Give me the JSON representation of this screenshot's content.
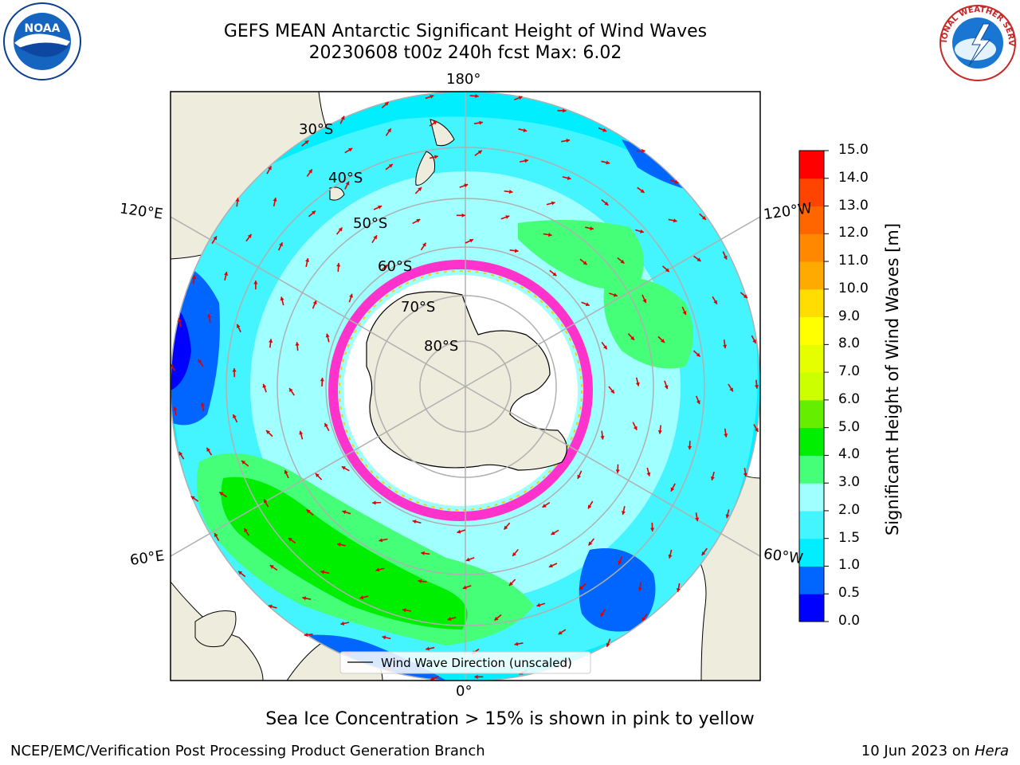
{
  "header": {
    "title_line1": "GEFS MEAN Antarctic Significant Height of Wind Waves",
    "title_line2": "20230608 t00z 240h fcst   Max: 6.02"
  },
  "map": {
    "projection": "south-polar-stereographic",
    "longitude_labels": {
      "top": "180°",
      "bottom": "0°",
      "left_upper": "120°E",
      "right_upper": "120°W",
      "left_lower": "60°E",
      "right_lower": "60°W"
    },
    "latitude_labels": [
      "30°S",
      "40°S",
      "50°S",
      "60°S",
      "70°S",
      "80°S"
    ],
    "legend": "Wind Wave Direction (unscaled)",
    "colors": {
      "land": "#eeecdc",
      "sea_ice_low": "#ff33cc",
      "sea_ice_high": "#ffcc00",
      "arrow": "#e00000"
    }
  },
  "colorbar": {
    "label": "Significant Height of Wind Waves [m]",
    "ticks": [
      "0.0",
      "0.5",
      "1.0",
      "1.5",
      "2.0",
      "3.0",
      "4.0",
      "5.0",
      "6.0",
      "7.0",
      "8.0",
      "9.0",
      "10.0",
      "11.0",
      "12.0",
      "13.0",
      "14.0",
      "15.0"
    ],
    "colors": [
      "#0000ff",
      "#0066ff",
      "#00eeff",
      "#44f4ff",
      "#a0ffff",
      "#44ff77",
      "#00ee00",
      "#66ee00",
      "#ccff00",
      "#e6ff00",
      "#ffff00",
      "#ffdd00",
      "#ffaa00",
      "#ff8800",
      "#ff6600",
      "#ff4400",
      "#ff0000"
    ]
  },
  "notes": {
    "sea_ice": "Sea Ice Concentration > 15% is shown in pink to yellow"
  },
  "footer": {
    "left": "NCEP/EMC/Verification Post Processing Product Generation Branch",
    "right_date": "10 Jun 2023 on ",
    "right_system": "Hera"
  },
  "logos": {
    "noaa": "NOAA",
    "nws": "NATIONAL WEATHER SERVICE"
  }
}
